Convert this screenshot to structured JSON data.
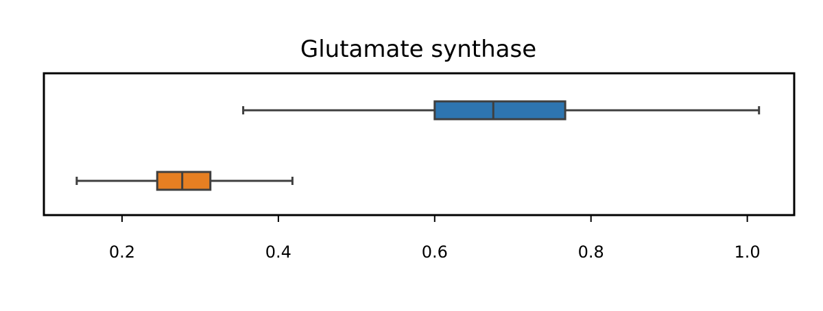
{
  "chart_data": {
    "type": "boxplot",
    "orientation": "horizontal",
    "title": "Glutamate synthase",
    "xlabel": "",
    "ylabel": "",
    "xlim": [
      0.1,
      1.06
    ],
    "xticks": [
      0.2,
      0.4,
      0.6,
      0.8,
      1.0
    ],
    "xtick_labels": [
      "0.2",
      "0.4",
      "0.6",
      "0.8",
      "1.0"
    ],
    "yticks_visible": false,
    "grid": false,
    "series": [
      {
        "color": "#2e75b0",
        "whisker_low": 0.355,
        "q1": 0.6,
        "median": 0.675,
        "q3": 0.767,
        "whisker_high": 1.015
      },
      {
        "color": "#e67f22",
        "whisker_low": 0.142,
        "q1": 0.245,
        "median": 0.277,
        "q3": 0.313,
        "whisker_high": 0.418
      }
    ]
  }
}
